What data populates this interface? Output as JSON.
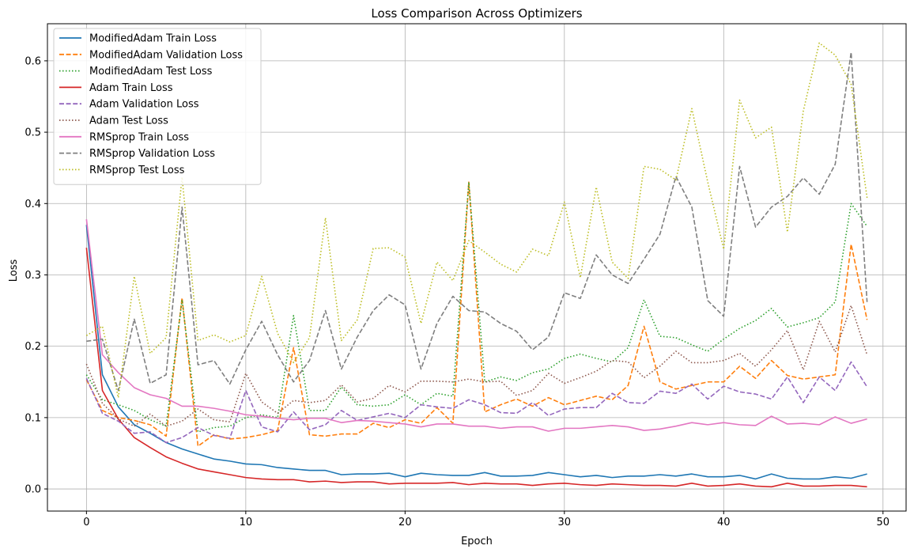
{
  "chart_data": {
    "type": "line",
    "title": "Loss Comparison Across Optimizers",
    "xlabel": "Epoch",
    "ylabel": "Loss",
    "xlim": [
      -2.45,
      51.45
    ],
    "ylim": [
      -0.031,
      0.652
    ],
    "xticks": [
      0,
      10,
      20,
      30,
      40,
      50
    ],
    "yticks": [
      0.0,
      0.1,
      0.2,
      0.3,
      0.4,
      0.5,
      0.6
    ],
    "xtick_labels": [
      "0",
      "10",
      "20",
      "30",
      "40",
      "50"
    ],
    "ytick_labels": [
      "0.0",
      "0.1",
      "0.2",
      "0.3",
      "0.4",
      "0.5",
      "0.6"
    ],
    "grid": true,
    "legend_position": "top-left",
    "series": [
      {
        "name": "ModifiedAdam Train Loss",
        "color": "#1f77b4",
        "dash": "solid",
        "values": [
          0.37,
          0.16,
          0.115,
          0.09,
          0.078,
          0.065,
          0.056,
          0.049,
          0.042,
          0.039,
          0.035,
          0.034,
          0.03,
          0.028,
          0.026,
          0.026,
          0.02,
          0.021,
          0.021,
          0.022,
          0.017,
          0.022,
          0.02,
          0.019,
          0.019,
          0.023,
          0.018,
          0.018,
          0.019,
          0.023,
          0.02,
          0.017,
          0.019,
          0.016,
          0.018,
          0.018,
          0.02,
          0.018,
          0.021,
          0.017,
          0.017,
          0.019,
          0.014,
          0.021,
          0.015,
          0.014,
          0.014,
          0.017,
          0.015,
          0.021
        ]
      },
      {
        "name": "ModifiedAdam Validation Loss",
        "color": "#ff7f0e",
        "dash": "dashed",
        "values": [
          0.153,
          0.11,
          0.1,
          0.096,
          0.09,
          0.074,
          0.268,
          0.06,
          0.076,
          0.07,
          0.072,
          0.076,
          0.082,
          0.198,
          0.076,
          0.074,
          0.077,
          0.077,
          0.092,
          0.086,
          0.097,
          0.092,
          0.114,
          0.092,
          0.43,
          0.108,
          0.118,
          0.126,
          0.116,
          0.128,
          0.118,
          0.124,
          0.13,
          0.125,
          0.145,
          0.228,
          0.15,
          0.14,
          0.145,
          0.15,
          0.15,
          0.172,
          0.155,
          0.18,
          0.159,
          0.154,
          0.157,
          0.16,
          0.343,
          0.237
        ]
      },
      {
        "name": "ModifiedAdam Test Loss",
        "color": "#2ca02c",
        "dash": "dotted",
        "values": [
          0.16,
          0.125,
          0.118,
          0.11,
          0.097,
          0.088,
          0.265,
          0.08,
          0.086,
          0.088,
          0.1,
          0.104,
          0.1,
          0.243,
          0.11,
          0.11,
          0.143,
          0.118,
          0.116,
          0.118,
          0.132,
          0.118,
          0.134,
          0.13,
          0.43,
          0.15,
          0.157,
          0.152,
          0.163,
          0.168,
          0.183,
          0.189,
          0.183,
          0.178,
          0.198,
          0.265,
          0.214,
          0.212,
          0.202,
          0.193,
          0.21,
          0.225,
          0.236,
          0.253,
          0.227,
          0.233,
          0.24,
          0.262,
          0.4,
          0.368
        ]
      },
      {
        "name": "Adam Train Loss",
        "color": "#d62728",
        "dash": "solid",
        "values": [
          0.338,
          0.138,
          0.098,
          0.072,
          0.058,
          0.045,
          0.036,
          0.028,
          0.024,
          0.02,
          0.016,
          0.014,
          0.013,
          0.013,
          0.01,
          0.011,
          0.009,
          0.01,
          0.01,
          0.007,
          0.008,
          0.008,
          0.008,
          0.009,
          0.006,
          0.008,
          0.007,
          0.007,
          0.005,
          0.007,
          0.008,
          0.006,
          0.005,
          0.007,
          0.006,
          0.005,
          0.005,
          0.004,
          0.008,
          0.004,
          0.005,
          0.007,
          0.004,
          0.003,
          0.008,
          0.004,
          0.004,
          0.005,
          0.005,
          0.003
        ]
      },
      {
        "name": "Adam Validation Loss",
        "color": "#9467bd",
        "dash": "dashed",
        "values": [
          0.155,
          0.106,
          0.095,
          0.078,
          0.08,
          0.065,
          0.072,
          0.086,
          0.075,
          0.071,
          0.138,
          0.087,
          0.08,
          0.108,
          0.083,
          0.09,
          0.11,
          0.096,
          0.101,
          0.106,
          0.1,
          0.118,
          0.115,
          0.113,
          0.125,
          0.118,
          0.107,
          0.106,
          0.121,
          0.103,
          0.112,
          0.114,
          0.114,
          0.134,
          0.121,
          0.12,
          0.137,
          0.134,
          0.147,
          0.126,
          0.144,
          0.136,
          0.133,
          0.126,
          0.157,
          0.121,
          0.157,
          0.138,
          0.178,
          0.143
        ]
      },
      {
        "name": "Adam Test Loss",
        "color": "#8c564b",
        "dash": "dotted",
        "values": [
          0.175,
          0.12,
          0.098,
          0.088,
          0.105,
          0.088,
          0.095,
          0.112,
          0.097,
          0.094,
          0.162,
          0.122,
          0.106,
          0.124,
          0.121,
          0.124,
          0.146,
          0.122,
          0.127,
          0.145,
          0.136,
          0.151,
          0.151,
          0.15,
          0.154,
          0.15,
          0.151,
          0.131,
          0.138,
          0.162,
          0.148,
          0.156,
          0.165,
          0.18,
          0.178,
          0.156,
          0.172,
          0.193,
          0.177,
          0.177,
          0.18,
          0.19,
          0.172,
          0.195,
          0.222,
          0.167,
          0.235,
          0.192,
          0.257,
          0.188
        ]
      },
      {
        "name": "RMSprop Train Loss",
        "color": "#e377c2",
        "dash": "solid",
        "values": [
          0.378,
          0.188,
          0.163,
          0.142,
          0.132,
          0.127,
          0.116,
          0.116,
          0.113,
          0.109,
          0.104,
          0.102,
          0.099,
          0.097,
          0.099,
          0.099,
          0.093,
          0.096,
          0.095,
          0.093,
          0.091,
          0.087,
          0.091,
          0.091,
          0.088,
          0.088,
          0.085,
          0.087,
          0.087,
          0.081,
          0.085,
          0.085,
          0.087,
          0.089,
          0.087,
          0.082,
          0.084,
          0.088,
          0.093,
          0.09,
          0.093,
          0.09,
          0.089,
          0.102,
          0.091,
          0.092,
          0.09,
          0.101,
          0.092,
          0.098
        ]
      },
      {
        "name": "RMSprop Validation Loss",
        "color": "#7f7f7f",
        "dash": "dashed",
        "values": [
          0.207,
          0.21,
          0.138,
          0.238,
          0.148,
          0.16,
          0.395,
          0.174,
          0.18,
          0.147,
          0.195,
          0.235,
          0.188,
          0.15,
          0.18,
          0.25,
          0.168,
          0.213,
          0.25,
          0.272,
          0.258,
          0.168,
          0.232,
          0.27,
          0.25,
          0.248,
          0.232,
          0.221,
          0.195,
          0.213,
          0.275,
          0.267,
          0.328,
          0.3,
          0.288,
          0.322,
          0.357,
          0.438,
          0.395,
          0.264,
          0.242,
          0.452,
          0.367,
          0.395,
          0.41,
          0.436,
          0.413,
          0.455,
          0.612,
          0.262
        ]
      },
      {
        "name": "RMSprop Test Loss",
        "color": "#bcbd22",
        "dash": "dotted",
        "values": [
          0.215,
          0.228,
          0.128,
          0.298,
          0.19,
          0.212,
          0.437,
          0.208,
          0.216,
          0.206,
          0.215,
          0.298,
          0.218,
          0.177,
          0.212,
          0.38,
          0.208,
          0.237,
          0.337,
          0.338,
          0.325,
          0.232,
          0.318,
          0.292,
          0.348,
          0.332,
          0.315,
          0.304,
          0.336,
          0.327,
          0.402,
          0.296,
          0.423,
          0.318,
          0.295,
          0.452,
          0.448,
          0.433,
          0.533,
          0.43,
          0.336,
          0.545,
          0.492,
          0.507,
          0.36,
          0.53,
          0.625,
          0.608,
          0.567,
          0.408
        ]
      }
    ]
  }
}
